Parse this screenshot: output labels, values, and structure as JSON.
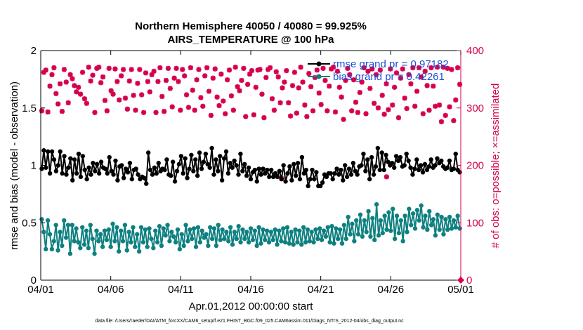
{
  "colors": {
    "rmse": "#000000",
    "bias": "#0e8080",
    "obs": "#d6004f",
    "legend_text": "#1a4fd6",
    "axes": "#000000"
  },
  "chart_data": {
    "type": "line",
    "title_line1": "Northern Hemisphere 40050 / 40080 = 99.925%",
    "title_line2": "AIRS_TEMPERATURE @ 100 hPa",
    "xlabel": "Apr.01,2012 00:00:00 start",
    "ylabel_left": "rmse and bias (model - observation)",
    "ylabel_right": "# of obs: o=possible; ×=assimilated",
    "footer": "data file: /Users/raeder/DAI/ATM_forcXX/CAM6_setup/f.e21.FHIST_BGC.f09_025.CAM6assim.011/Diags_NTrS_2012-04/obs_diag_output.nc",
    "x_ticks": [
      "04/01",
      "04/06",
      "04/11",
      "04/16",
      "04/21",
      "04/26",
      "05/01"
    ],
    "x_range_days": [
      0,
      30
    ],
    "ylim_left": [
      0,
      2
    ],
    "y_ticks_left": [
      "0",
      "0.5",
      "1",
      "1.5",
      "2"
    ],
    "ylim_right": [
      0,
      400
    ],
    "y_ticks_right": [
      "0",
      "100",
      "200",
      "300",
      "400"
    ],
    "grid": false,
    "legend_location": "top-right",
    "legend": [
      "rmse grand pr = 0.97182",
      "bias grand pr = 0.42261"
    ],
    "rmse_values": [
      0.97,
      1.13,
      0.98,
      1.12,
      0.93,
      1.12,
      1.05,
      0.95,
      1.0,
      1.12,
      0.93,
      1.08,
      0.92,
      0.98,
      1.06,
      0.87,
      1.05,
      0.93,
      1.1,
      0.9,
      1.08,
      0.96,
      0.88,
      0.98,
      0.92,
      1.02,
      0.95,
      1.01,
      0.93,
      1.03,
      0.98,
      0.97,
      0.93,
      1.07,
      0.95,
      0.92,
      1.04,
      0.87,
      0.99,
      1.0,
      0.89,
      0.97,
      0.94,
      1.02,
      0.88,
      0.96,
      0.97,
      0.92,
      0.88,
      0.9,
      0.89,
      0.84,
      1.11,
      0.96,
      0.92,
      0.98,
      0.93,
      1.02,
      0.95,
      0.97,
      0.96,
      1.05,
      0.92,
      0.91,
      1.03,
      0.86,
      0.95,
      1.01,
      1.08,
      0.93,
      1.06,
      0.89,
      0.97,
      1.09,
      0.95,
      1.05,
      0.91,
      1.11,
      0.97,
      1.03,
      1.1,
      1.01,
      0.98,
      1.15,
      0.92,
      1.05,
      0.95,
      1.08,
      0.87,
      1.06,
      1.12,
      0.93,
      1.02,
      0.98,
      1.04,
      1.0,
      0.92,
      1.1,
      0.95,
      1.01,
      0.91,
      0.98,
      0.88,
      0.94,
      0.96,
      0.86,
      0.97,
      0.92,
      0.97,
      0.93,
      0.96,
      0.9,
      0.96,
      0.9,
      0.93,
      0.9,
      0.95,
      0.88,
      1.0,
      0.86,
      0.93,
      0.99,
      0.87,
      1.01,
      0.91,
      1.02,
      0.88,
      1.07,
      0.93,
      0.96,
      0.82,
      0.88,
      0.96,
      0.88,
      0.94,
      0.82,
      0.82,
      0.85,
      0.92,
      0.9,
      0.93,
      0.93,
      0.88,
      0.93,
      0.97,
      0.92,
      0.96,
      0.87,
      1.0,
      0.9,
      0.97,
      0.92,
      1.02,
      0.95,
      0.92,
      0.99,
      1.0,
      1.1,
      0.95,
      1.05,
      0.88,
      1.07,
      0.92,
      0.99,
      1.15,
      0.96,
      1.11,
      0.96,
      1.09,
      1.03,
      1.0,
      1.02,
      0.98,
      1.08,
      1.04,
      1.07,
      0.99,
      1.0,
      1.1,
      1.04,
      0.98,
      0.92,
      0.97,
      1.05,
      0.96,
      1.0,
      0.94,
      1.01,
      0.96,
      0.99,
      1.05,
      0.98,
      1.0,
      1.06,
      1.02,
      1.04,
      0.99,
      0.97,
      0.98,
      1.04,
      0.96,
      0.97,
      1.1,
      0.96,
      0.94
    ],
    "bias_values": [
      0.53,
      0.42,
      0.27,
      0.52,
      0.4,
      0.27,
      0.34,
      0.48,
      0.26,
      0.42,
      0.3,
      0.52,
      0.37,
      0.48,
      0.23,
      0.48,
      0.34,
      0.45,
      0.33,
      0.28,
      0.46,
      0.31,
      0.43,
      0.28,
      0.48,
      0.36,
      0.23,
      0.43,
      0.34,
      0.4,
      0.29,
      0.43,
      0.35,
      0.44,
      0.29,
      0.49,
      0.34,
      0.46,
      0.25,
      0.43,
      0.34,
      0.48,
      0.26,
      0.42,
      0.33,
      0.46,
      0.29,
      0.4,
      0.25,
      0.46,
      0.33,
      0.44,
      0.29,
      0.45,
      0.36,
      0.28,
      0.43,
      0.33,
      0.47,
      0.3,
      0.45,
      0.39,
      0.48,
      0.34,
      0.42,
      0.38,
      0.33,
      0.44,
      0.27,
      0.4,
      0.3,
      0.48,
      0.34,
      0.44,
      0.36,
      0.45,
      0.29,
      0.46,
      0.33,
      0.43,
      0.37,
      0.4,
      0.3,
      0.46,
      0.36,
      0.45,
      0.3,
      0.48,
      0.35,
      0.44,
      0.36,
      0.42,
      0.34,
      0.46,
      0.31,
      0.42,
      0.36,
      0.47,
      0.33,
      0.44,
      0.36,
      0.42,
      0.33,
      0.45,
      0.35,
      0.43,
      0.3,
      0.46,
      0.32,
      0.44,
      0.35,
      0.43,
      0.33,
      0.42,
      0.35,
      0.44,
      0.31,
      0.43,
      0.34,
      0.45,
      0.33,
      0.46,
      0.32,
      0.42,
      0.31,
      0.44,
      0.33,
      0.43,
      0.31,
      0.46,
      0.33,
      0.44,
      0.34,
      0.42,
      0.33,
      0.44,
      0.36,
      0.45,
      0.35,
      0.43,
      0.38,
      0.46,
      0.33,
      0.47,
      0.32,
      0.45,
      0.36,
      0.44,
      0.32,
      0.48,
      0.36,
      0.55,
      0.4,
      0.49,
      0.34,
      0.52,
      0.4,
      0.57,
      0.38,
      0.52,
      0.42,
      0.6,
      0.38,
      0.54,
      0.35,
      0.66,
      0.39,
      0.52,
      0.41,
      0.56,
      0.44,
      0.59,
      0.43,
      0.62,
      0.36,
      0.56,
      0.41,
      0.52,
      0.34,
      0.56,
      0.42,
      0.62,
      0.48,
      0.58,
      0.45,
      0.61,
      0.52,
      0.65,
      0.46,
      0.56,
      0.44,
      0.6,
      0.48,
      0.53,
      0.39,
      0.57,
      0.44,
      0.55,
      0.4,
      0.53,
      0.44,
      0.55,
      0.45,
      0.52,
      0.46,
      0.56,
      0.45
    ],
    "obs_assimilated": [
      295,
      362,
      366,
      293,
      338,
      358,
      370,
      325,
      307,
      342,
      294,
      367,
      345,
      309,
      358,
      351,
      339,
      328,
      336,
      324,
      362,
      316,
      308,
      371,
      347,
      357,
      292,
      369,
      371,
      344,
      354,
      313,
      295,
      369,
      330,
      324,
      368,
      346,
      314,
      356,
      367,
      317,
      298,
      347,
      367,
      322,
      296,
      343,
      367,
      323,
      292,
      361,
      346,
      328,
      358,
      364,
      292,
      346,
      370,
      320,
      294,
      348,
      369,
      334,
      302,
      352,
      369,
      346,
      296,
      367,
      356,
      323,
      301,
      370,
      331,
      296,
      349,
      367,
      318,
      303,
      356,
      370,
      329,
      287,
      352,
      368,
      319,
      304,
      359,
      312,
      290,
      349,
      366,
      321,
      296,
      371,
      337,
      330,
      348,
      369,
      285,
      341,
      359,
      365,
      288,
      336,
      366,
      367,
      324,
      283,
      353,
      367,
      370,
      316,
      296,
      363,
      354,
      309,
      335,
      345,
      365,
      309,
      286,
      339,
      362,
      291,
      335,
      371,
      345,
      305,
      285,
      360,
      337,
      295,
      353,
      366,
      326,
      306,
      369,
      348,
      295,
      338,
      368,
      371,
      293,
      364,
      336,
      319,
      280,
      348,
      369,
      358,
      295,
      349,
      310,
      292,
      327,
      345,
      370,
      290,
      364,
      334,
      368,
      308,
      358,
      300,
      366,
      322,
      289,
      342,
      297,
      368,
      305,
      336,
      361,
      283,
      352,
      368,
      317,
      299,
      358,
      342,
      370,
      303,
      329,
      370,
      354,
      290,
      364,
      339,
      296,
      370,
      338,
      303,
      371,
      305,
      276,
      371,
      287,
      369,
      302,
      367,
      278,
      314,
      370,
      341
    ],
    "obs_assimilated_low": [
      [
        17.2,
        0.885
      ],
      [
        24.7,
        0.9
      ]
    ]
  }
}
